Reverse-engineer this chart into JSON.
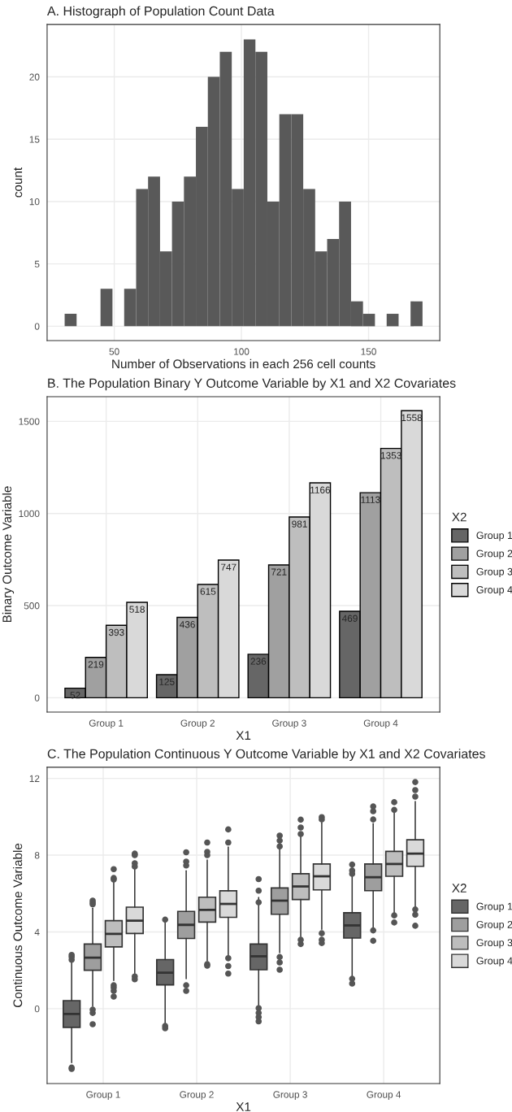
{
  "chart_data": [
    {
      "type": "histogram",
      "title": "A. Histograph of Population Count Data",
      "xlabel": "Number of Observations in each 256 cell counts",
      "ylabel": "count",
      "color": "#595959",
      "bins": [
        30.5,
        35.2,
        39.9,
        44.6,
        49.3,
        53.9,
        58.6,
        63.3,
        68.0,
        72.7,
        77.4,
        82.1,
        86.8,
        91.5,
        96.2,
        100.9,
        105.5,
        110.2,
        114.9,
        119.6,
        124.3,
        129.0,
        133.7,
        138.4,
        143.1,
        147.8,
        152.5,
        157.1,
        161.8,
        166.5,
        171.2
      ],
      "values": [
        1,
        0,
        0,
        3,
        0,
        3,
        11,
        12,
        6,
        10,
        12,
        16,
        20,
        22,
        11,
        23,
        22,
        10,
        17,
        17,
        11,
        6,
        7,
        10,
        2,
        1,
        0,
        1,
        0,
        2
      ],
      "xlim": [
        23.6,
        178.0
      ],
      "xticks": [
        50,
        100,
        150
      ],
      "ylim": [
        -1.15,
        24.2
      ],
      "yticks": [
        0,
        5,
        10,
        15,
        20
      ],
      "grid": true,
      "legend": false
    },
    {
      "type": "bar",
      "title": "B. The Population Binary Y Outcome Variable by X1 and X2 Covariates",
      "xlabel": "X1",
      "ylabel": "Binary Outcome Variable",
      "legend_title": "X2",
      "categories": [
        "Group 1",
        "Group 2",
        "Group 3",
        "Group 4"
      ],
      "series": [
        {
          "name": "Group 1",
          "color": "#666666",
          "values": [
            52,
            125,
            236,
            469
          ]
        },
        {
          "name": "Group 2",
          "color": "#a0a0a0",
          "values": [
            219,
            436,
            721,
            1113
          ]
        },
        {
          "name": "Group 3",
          "color": "#bebebe",
          "values": [
            393,
            615,
            981,
            1353
          ]
        },
        {
          "name": "Group 4",
          "color": "#d9d9d9",
          "values": [
            518,
            747,
            1166,
            1558
          ]
        }
      ],
      "ylim": [
        -78,
        1634
      ],
      "yticks": [
        0,
        500,
        1000,
        1500
      ],
      "grid": true,
      "legend": "right",
      "data_labels": true
    },
    {
      "type": "box",
      "title": "C. The Population Continuous Y Outcome Variable by X1 and X2 Covariates",
      "xlabel": "X1",
      "ylabel": "Continuous Outcome Variable",
      "legend_title": "X2",
      "categories": [
        "Group 1",
        "Group 2",
        "Group 3",
        "Group 4"
      ],
      "series": [
        {
          "name": "Group 1",
          "color": "#666666",
          "boxes": [
            {
              "low": -2.81,
              "q1": -0.97,
              "median": -0.27,
              "q3": 0.42,
              "high": 2.41,
              "outliers": [
                -3.14,
                -3.07,
                2.55,
                2.7,
                2.8
              ]
            },
            {
              "low": -0.81,
              "q1": 1.24,
              "median": 1.88,
              "q3": 2.56,
              "high": 4.53,
              "outliers": [
                4.64,
                -0.9,
                -1.02
              ]
            },
            {
              "low": 0.12,
              "q1": 2.03,
              "median": 2.73,
              "q3": 3.37,
              "high": 5.8,
              "outliers": [
                6.75,
                6.15,
                5.54,
                0.03,
                -0.22,
                -0.44,
                -0.66
              ]
            },
            {
              "low": 1.68,
              "q1": 3.68,
              "median": 4.34,
              "q3": 5.0,
              "high": 6.97,
              "outliers": [
                7.51,
                7.2,
                7.03,
                1.56,
                1.31
              ]
            }
          ]
        },
        {
          "name": "Group 2",
          "color": "#9e9e9e",
          "boxes": [
            {
              "low": 0.12,
              "q1": 2.0,
              "median": 2.66,
              "q3": 3.37,
              "high": 5.24,
              "outliers": [
                5.63,
                5.53,
                5.44,
                -0.05,
                -0.22,
                -0.81
              ]
            },
            {
              "low": 1.56,
              "q1": 3.66,
              "median": 4.37,
              "q3": 5.07,
              "high": 7.19,
              "outliers": [
                8.15,
                7.66,
                7.46,
                1.22,
                0.93
              ]
            },
            {
              "low": 2.92,
              "q1": 4.92,
              "median": 5.63,
              "q3": 6.29,
              "high": 8.37,
              "outliers": [
                9.02,
                8.76,
                8.46,
                2.69,
                2.41,
                2.03
              ]
            },
            {
              "low": 4.19,
              "q1": 6.15,
              "median": 6.85,
              "q3": 7.54,
              "high": 9.64,
              "outliers": [
                10.54,
                10.29,
                9.86,
                4.08,
                3.54
              ]
            }
          ]
        },
        {
          "name": "Group 3",
          "color": "#bdbdbd",
          "boxes": [
            {
              "low": 1.47,
              "q1": 3.22,
              "median": 3.9,
              "q3": 4.59,
              "high": 6.61,
              "outliers": [
                7.27,
                6.81,
                6.73,
                1.22,
                1.1,
                0.93,
                0.63
              ]
            },
            {
              "low": 2.49,
              "q1": 4.51,
              "median": 5.15,
              "q3": 5.81,
              "high": 7.75,
              "outliers": [
                8.66,
                8.17,
                8.0,
                2.32,
                2.24
              ]
            },
            {
              "low": 3.76,
              "q1": 5.69,
              "median": 6.37,
              "q3": 7.03,
              "high": 9.0,
              "outliers": [
                9.85,
                9.44,
                9.1,
                3.59,
                3.37
              ]
            },
            {
              "low": 4.95,
              "q1": 6.9,
              "median": 7.54,
              "q3": 8.2,
              "high": 10.2,
              "outliers": [
                10.76,
                10.36,
                4.86,
                4.49
              ]
            }
          ]
        },
        {
          "name": "Group 4",
          "color": "#d9d9d9",
          "boxes": [
            {
              "low": 1.81,
              "q1": 3.92,
              "median": 4.59,
              "q3": 5.29,
              "high": 7.29,
              "outliers": [
                8.08,
                8.0,
                7.58,
                7.41,
                1.68,
                1.53
              ]
            },
            {
              "low": 2.71,
              "q1": 4.76,
              "median": 5.46,
              "q3": 6.14,
              "high": 8.42,
              "outliers": [
                9.34,
                8.66,
                2.63,
                2.22,
                1.83
              ]
            },
            {
              "low": 4.14,
              "q1": 6.19,
              "median": 6.9,
              "q3": 7.54,
              "high": 9.69,
              "outliers": [
                9.98,
                9.86,
                3.93,
                3.59,
                3.42
              ]
            },
            {
              "low": 5.29,
              "q1": 7.42,
              "median": 8.08,
              "q3": 8.8,
              "high": 10.8,
              "outliers": [
                11.81,
                11.39,
                11.05,
                5.17,
                4.9,
                4.32
              ]
            }
          ]
        }
      ],
      "ylim": [
        -3.9,
        12.58
      ],
      "yticks": [
        0,
        4,
        8,
        12
      ],
      "grid": true,
      "legend": "right"
    }
  ]
}
